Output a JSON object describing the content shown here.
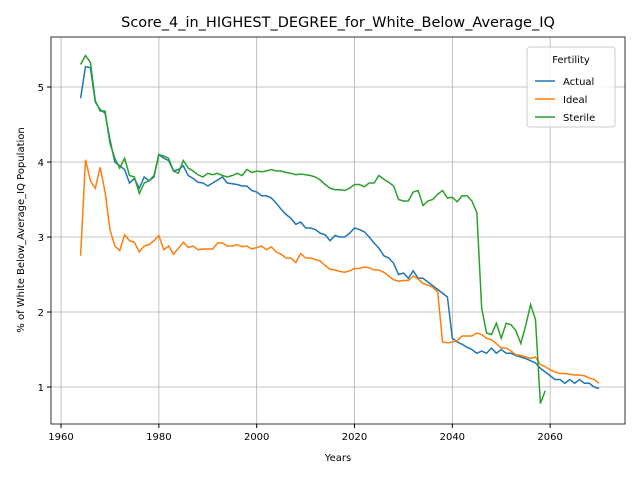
{
  "chart_data": {
    "type": "line",
    "title": "Score_4_in_HIGHEST_DEGREE_for_White_Below_Average_IQ",
    "x_label": "Years",
    "y_label": "% of White Below_Average_IQ Population",
    "legend_title": "Fertility",
    "legend": "upper right",
    "grid": true,
    "xlim": [
      1957.95,
      2075.3
    ],
    "ylim": [
      0.507,
      5.667
    ],
    "xticks": [
      1960,
      1980,
      2000,
      2020,
      2040,
      2060
    ],
    "yticks": [
      1,
      2,
      3,
      4,
      5
    ],
    "x": [
      1964,
      1965,
      1966,
      1967,
      1968,
      1969,
      1970,
      1971,
      1972,
      1973,
      1974,
      1975,
      1976,
      1977,
      1978,
      1979,
      1980,
      1981,
      1982,
      1983,
      1984,
      1985,
      1986,
      1987,
      1988,
      1989,
      1990,
      1991,
      1992,
      1993,
      1994,
      1995,
      1996,
      1997,
      1998,
      1999,
      2000,
      2001,
      2002,
      2003,
      2004,
      2005,
      2006,
      2007,
      2008,
      2009,
      2010,
      2011,
      2012,
      2013,
      2014,
      2015,
      2016,
      2017,
      2018,
      2019,
      2020,
      2021,
      2022,
      2023,
      2024,
      2025,
      2026,
      2027,
      2028,
      2029,
      2030,
      2031,
      2032,
      2033,
      2034,
      2035,
      2036,
      2037,
      2038,
      2039,
      2040,
      2041,
      2042,
      2043,
      2044,
      2045,
      2046,
      2047,
      2048,
      2049,
      2050,
      2051,
      2052,
      2053,
      2054,
      2055,
      2056,
      2057,
      2058,
      2059,
      2060,
      2061,
      2062,
      2063,
      2064,
      2065,
      2066,
      2067,
      2068,
      2069,
      2070
    ],
    "series": [
      {
        "name": "Actual",
        "color": "#1f77b4",
        "values": [
          4.85,
          5.27,
          5.26,
          4.8,
          4.7,
          4.65,
          4.3,
          4.0,
          3.95,
          3.9,
          3.72,
          3.78,
          3.65,
          3.8,
          3.75,
          3.8,
          4.1,
          4.05,
          4.02,
          3.88,
          3.9,
          3.95,
          3.82,
          3.78,
          3.73,
          3.72,
          3.68,
          3.72,
          3.76,
          3.8,
          3.72,
          3.71,
          3.7,
          3.68,
          3.68,
          3.62,
          3.6,
          3.55,
          3.55,
          3.52,
          3.45,
          3.37,
          3.3,
          3.25,
          3.17,
          3.2,
          3.12,
          3.12,
          3.1,
          3.05,
          3.03,
          2.95,
          3.02,
          3.0,
          3.0,
          3.05,
          3.12,
          3.1,
          3.07,
          3.0,
          2.92,
          2.85,
          2.75,
          2.72,
          2.65,
          2.5,
          2.52,
          2.45,
          2.55,
          2.45,
          2.45,
          2.4,
          2.35,
          2.3,
          2.25,
          2.2,
          1.65,
          1.6,
          1.57,
          1.53,
          1.5,
          1.45,
          1.48,
          1.45,
          1.52,
          1.45,
          1.5,
          1.45,
          1.45,
          1.42,
          1.4,
          1.38,
          1.35,
          1.32,
          1.25,
          1.2,
          1.15,
          1.1,
          1.1,
          1.05,
          1.1,
          1.05,
          1.1,
          1.05,
          1.05,
          1.0,
          0.98
        ]
      },
      {
        "name": "Ideal",
        "color": "#ff7f0e",
        "values": [
          2.75,
          4.03,
          3.75,
          3.65,
          3.93,
          3.6,
          3.1,
          2.88,
          2.82,
          3.03,
          2.95,
          2.93,
          2.8,
          2.88,
          2.9,
          2.95,
          3.02,
          2.83,
          2.88,
          2.77,
          2.85,
          2.93,
          2.86,
          2.88,
          2.83,
          2.84,
          2.84,
          2.84,
          2.92,
          2.92,
          2.88,
          2.88,
          2.9,
          2.87,
          2.88,
          2.84,
          2.86,
          2.88,
          2.83,
          2.87,
          2.8,
          2.77,
          2.72,
          2.72,
          2.66,
          2.78,
          2.72,
          2.72,
          2.7,
          2.68,
          2.62,
          2.57,
          2.56,
          2.54,
          2.53,
          2.55,
          2.58,
          2.58,
          2.6,
          2.59,
          2.56,
          2.56,
          2.53,
          2.48,
          2.43,
          2.41,
          2.42,
          2.42,
          2.48,
          2.44,
          2.38,
          2.36,
          2.33,
          2.27,
          1.6,
          1.59,
          1.6,
          1.62,
          1.68,
          1.68,
          1.68,
          1.72,
          1.7,
          1.65,
          1.63,
          1.58,
          1.52,
          1.52,
          1.48,
          1.43,
          1.42,
          1.4,
          1.38,
          1.4,
          1.3,
          1.27,
          1.23,
          1.2,
          1.18,
          1.18,
          1.17,
          1.16,
          1.16,
          1.15,
          1.12,
          1.1,
          1.05
        ]
      },
      {
        "name": "Sterile",
        "color": "#2ca02c",
        "values": [
          5.3,
          5.42,
          5.33,
          4.82,
          4.68,
          4.68,
          4.25,
          4.05,
          3.92,
          4.05,
          3.82,
          3.8,
          3.58,
          3.72,
          3.75,
          3.82,
          4.1,
          4.08,
          4.05,
          3.88,
          3.85,
          4.02,
          3.92,
          3.88,
          3.83,
          3.8,
          3.85,
          3.83,
          3.85,
          3.82,
          3.8,
          3.82,
          3.85,
          3.82,
          3.9,
          3.86,
          3.88,
          3.87,
          3.88,
          3.9,
          3.88,
          3.88,
          3.86,
          3.85,
          3.83,
          3.84,
          3.83,
          3.82,
          3.8,
          3.76,
          3.7,
          3.65,
          3.63,
          3.63,
          3.62,
          3.65,
          3.7,
          3.7,
          3.67,
          3.72,
          3.72,
          3.82,
          3.77,
          3.73,
          3.68,
          3.5,
          3.48,
          3.48,
          3.6,
          3.62,
          3.42,
          3.48,
          3.5,
          3.57,
          3.62,
          3.52,
          3.53,
          3.47,
          3.55,
          3.55,
          3.48,
          3.33,
          2.05,
          1.72,
          1.7,
          1.85,
          1.65,
          1.85,
          1.83,
          1.75,
          1.58,
          1.82,
          2.1,
          1.9,
          0.78,
          0.95,
          null,
          null,
          null,
          null,
          null,
          null,
          null,
          null,
          null,
          null,
          null
        ]
      }
    ]
  }
}
